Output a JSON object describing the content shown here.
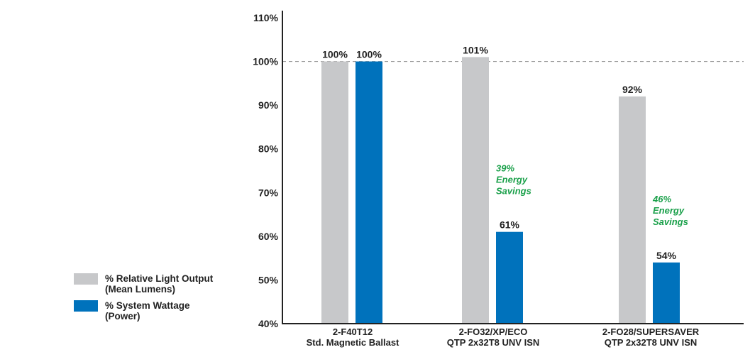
{
  "chart_data": {
    "type": "bar",
    "title": "",
    "xlabel": "",
    "ylabel": "",
    "ylim": [
      40,
      110
    ],
    "yticks": [
      "40%",
      "50%",
      "60%",
      "70%",
      "80%",
      "90%",
      "100%",
      "110%"
    ],
    "ytick_values": [
      40,
      50,
      60,
      70,
      80,
      90,
      100,
      110
    ],
    "reference_line": 100,
    "categories": [
      [
        "2-F40T12",
        "Std. Magnetic Ballast"
      ],
      [
        "2-FO32/XP/ECO",
        "QTP 2x32T8 UNV ISN"
      ],
      [
        "2-FO28/SUPERSAVER",
        "QTP 2x32T8  UNV ISN"
      ]
    ],
    "series": [
      {
        "name": [
          "% Relative Light Output",
          "(Mean Lumens)"
        ],
        "color": "#c7c8ca",
        "values": [
          100,
          101,
          92
        ],
        "labels": [
          "100%",
          "101%",
          "92%"
        ]
      },
      {
        "name": [
          "% System Wattage",
          "(Power)"
        ],
        "color": "#0072bc",
        "values": [
          100,
          61,
          54
        ],
        "labels": [
          "100%",
          "61%",
          "54%"
        ]
      }
    ],
    "annotations": [
      {
        "category": 1,
        "lines": [
          "39%",
          "Energy",
          "Savings"
        ]
      },
      {
        "category": 2,
        "lines": [
          "46%",
          "Energy",
          "Savings"
        ]
      }
    ],
    "annotation_color": "#1aa04a",
    "legend_position": "left"
  }
}
